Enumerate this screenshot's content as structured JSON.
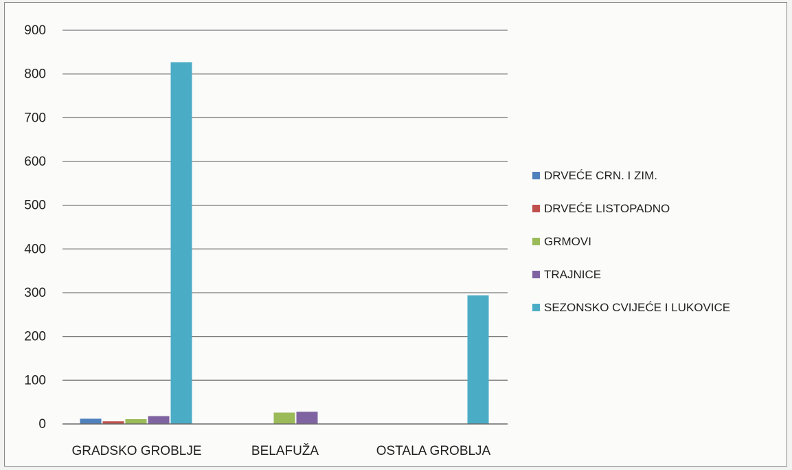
{
  "chart_data": {
    "type": "bar",
    "title": "",
    "xlabel": "",
    "ylabel": "",
    "ylim": [
      0,
      900
    ],
    "yticks": [
      0,
      100,
      200,
      300,
      400,
      500,
      600,
      700,
      800,
      900
    ],
    "grid": true,
    "legend_position": "right",
    "categories": [
      "GRADSKO GROBLJE",
      "BELAFUŽA",
      "OSTALA GROBLJA"
    ],
    "series": [
      {
        "name": "DRVEĆE CRN. I ZIM.",
        "color": "#4f81bd",
        "values": [
          12,
          0,
          0
        ]
      },
      {
        "name": "DRVEĆE LISTOPADNO",
        "color": "#c0504d",
        "values": [
          6,
          0,
          0
        ]
      },
      {
        "name": "GRMOVI",
        "color": "#9bbb59",
        "values": [
          11,
          26,
          0
        ]
      },
      {
        "name": "TRAJNICE",
        "color": "#8064a2",
        "values": [
          18,
          28,
          0
        ]
      },
      {
        "name": "SEZONSKO CVIJEĆE I LUKOVICE",
        "color": "#4bacc6",
        "values": [
          827,
          0,
          294
        ]
      }
    ]
  }
}
